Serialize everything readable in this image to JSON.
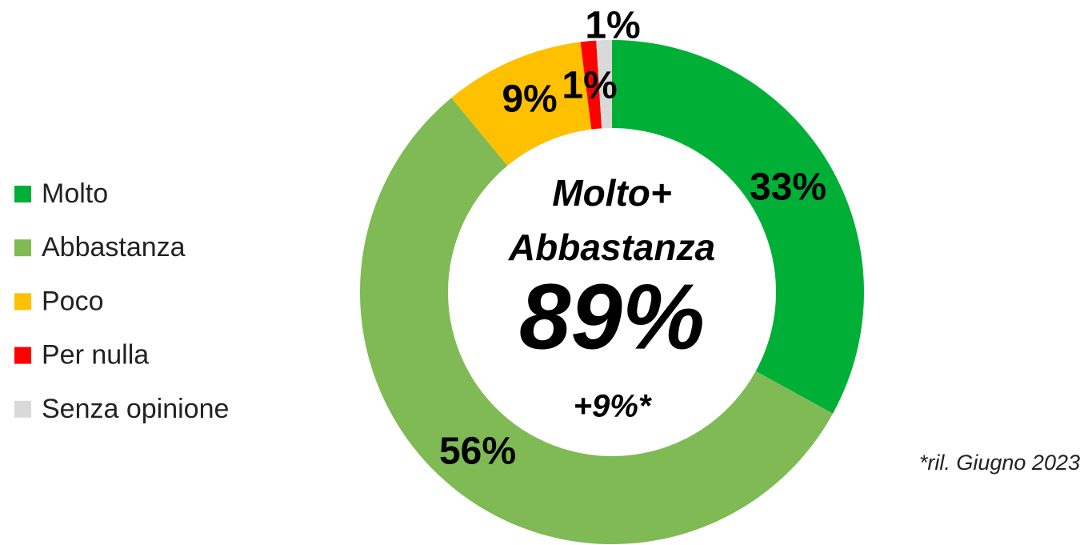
{
  "chart_data": {
    "type": "donut",
    "categories": [
      "Molto",
      "Abbastanza",
      "Poco",
      "Per nulla",
      "Senza opinione"
    ],
    "values": [
      33,
      56,
      9,
      1,
      1
    ],
    "value_labels": [
      "33%",
      "56%",
      "9%",
      "1%",
      "1%"
    ],
    "colors": [
      "#00b036",
      "#7fba55",
      "#ffc000",
      "#ff0000",
      "#d9d9d9"
    ],
    "center_text": [
      "Molto+",
      "Abbastanza",
      "89%",
      "+9%*"
    ],
    "footnote": "*ril. Giugno 2023",
    "legend": "left"
  }
}
